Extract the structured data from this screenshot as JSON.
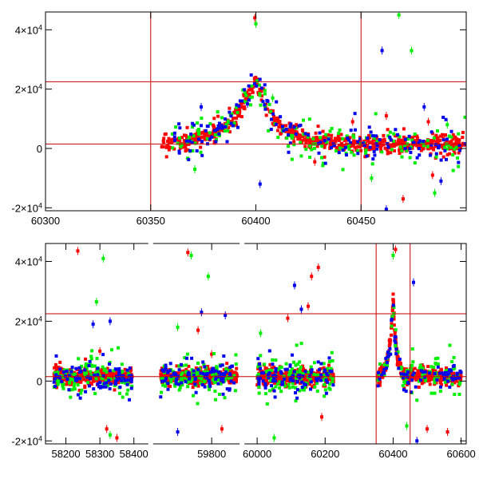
{
  "chart_data": [
    {
      "type": "scatter",
      "panel": "top",
      "xlim": [
        60300,
        60500
      ],
      "ylim": [
        -21000,
        46000
      ],
      "x_ticks": [
        60300,
        60350,
        60400,
        60450
      ],
      "y_ticks": [
        {
          "value": -20000,
          "mantissa": "-2",
          "sup": "4"
        },
        {
          "value": 0,
          "mantissa": "0",
          "sup": ""
        },
        {
          "value": 20000,
          "mantissa": "2",
          "sup": "4"
        },
        {
          "value": 40000,
          "mantissa": "4",
          "sup": "4"
        }
      ],
      "horizontal_lines": [
        1500,
        22500
      ],
      "vertical_lines": [
        60350,
        60450
      ],
      "grid": false,
      "series": [
        {
          "color": "#ff0000",
          "segments": [
            {
              "x0": 60355,
              "x1": 60500,
              "n": 700,
              "model": "flare_top",
              "scatter": 1500,
              "outliers": [
                [
                  60399.5,
                  44000
                ],
                [
                  60428,
                  -4500
                ],
                [
                  60446,
                  9000
                ],
                [
                  60462,
                  11000
                ],
                [
                  60470,
                  -17000
                ],
                [
                  60482,
                  9000
                ],
                [
                  60484,
                  -9000
                ]
              ]
            }
          ]
        },
        {
          "color": "#00ee00",
          "segments": [
            {
              "x0": 60360,
              "x1": 60500,
              "n": 180,
              "model": "flare_top",
              "scatter": 3500,
              "outliers": [
                [
                  60400,
                  42000
                ],
                [
                  60408,
                  17000
                ],
                [
                  60371,
                  -7000
                ],
                [
                  60468,
                  45000
                ],
                [
                  60474,
                  33000
                ],
                [
                  60455,
                  -10000
                ],
                [
                  60485,
                  -15000
                ],
                [
                  60491,
                  8000
                ]
              ]
            }
          ]
        },
        {
          "color": "#0000ee",
          "segments": [
            {
              "x0": 60360,
              "x1": 60500,
              "n": 160,
              "model": "flare_top",
              "scatter": 3000,
              "outliers": [
                [
                  60374,
                  14000
                ],
                [
                  60396,
                  15000
                ],
                [
                  60402,
                  -12000
                ],
                [
                  60460,
                  33000
                ],
                [
                  60462,
                  -20500
                ],
                [
                  60480,
                  14000
                ],
                [
                  60488,
                  -11000
                ]
              ]
            }
          ]
        }
      ]
    },
    {
      "type": "scatter",
      "panel": "bottom",
      "x_ticks": [
        58200,
        58300,
        58400,
        59800,
        60000,
        60200,
        60400,
        60600
      ],
      "x_segments": [
        [
          58140,
          58440
        ],
        [
          59630,
          59880
        ],
        [
          59965,
          60615
        ]
      ],
      "ylim": [
        -21000,
        46000
      ],
      "y_ticks": [
        {
          "value": -20000,
          "mantissa": "-2",
          "sup": "4"
        },
        {
          "value": 0,
          "mantissa": "0",
          "sup": ""
        },
        {
          "value": 20000,
          "mantissa": "2",
          "sup": "4"
        },
        {
          "value": 40000,
          "mantissa": "4",
          "sup": "4"
        }
      ],
      "horizontal_lines": [
        1500,
        22500
      ],
      "vertical_lines": [
        60350,
        60450
      ],
      "grid": false,
      "series": [
        {
          "color": "#ff0000",
          "segments": [
            {
              "x0": 58165,
              "x1": 58395,
              "n": 420,
              "model": "flat",
              "scatter": 1200,
              "outliers": [
                [
                  58235,
                  43500
                ],
                [
                  58300,
                  10000
                ],
                [
                  58320,
                  -16000
                ],
                [
                  58350,
                  -19000
                ]
              ]
            },
            {
              "x0": 59650,
              "x1": 59875,
              "n": 420,
              "model": "flat",
              "scatter": 1200,
              "outliers": [
                [
                  59730,
                  43000
                ],
                [
                  59760,
                  17000
                ],
                [
                  59800,
                  9000
                ],
                [
                  59830,
                  -16000
                ]
              ]
            },
            {
              "x0": 60000,
              "x1": 60225,
              "n": 420,
              "model": "flat",
              "scatter": 1200,
              "outliers": [
                [
                  60090,
                  21000
                ],
                [
                  60150,
                  25000
                ],
                [
                  60160,
                  35000
                ],
                [
                  60180,
                  38000
                ],
                [
                  60190,
                  -12000
                ]
              ]
            },
            {
              "x0": 60355,
              "x1": 60600,
              "n": 420,
              "model": "flare_bottom",
              "scatter": 1200,
              "outliers": [
                [
                  60407,
                  44000
                ],
                [
                  60500,
                  -16000
                ],
                [
                  60560,
                  -17000
                ]
              ]
            }
          ]
        },
        {
          "color": "#00ee00",
          "segments": [
            {
              "x0": 58165,
              "x1": 58395,
              "n": 120,
              "model": "flat",
              "scatter": 3000,
              "outliers": [
                [
                  58310,
                  41000
                ],
                [
                  58290,
                  26500
                ],
                [
                  58330,
                  -18000
                ]
              ]
            },
            {
              "x0": 59650,
              "x1": 59875,
              "n": 120,
              "model": "flat",
              "scatter": 3000,
              "outliers": [
                [
                  59740,
                  42000
                ],
                [
                  59790,
                  35000
                ],
                [
                  59700,
                  18000
                ]
              ]
            },
            {
              "x0": 60000,
              "x1": 60225,
              "n": 120,
              "model": "flat",
              "scatter": 3000,
              "outliers": [
                [
                  60010,
                  16000
                ],
                [
                  60050,
                  -19000
                ]
              ]
            },
            {
              "x0": 60355,
              "x1": 60600,
              "n": 90,
              "model": "flare_bottom",
              "scatter": 3000,
              "outliers": [
                [
                  60400,
                  42000
                ],
                [
                  60440,
                  -15000
                ]
              ]
            }
          ]
        },
        {
          "color": "#0000ee",
          "segments": [
            {
              "x0": 58165,
              "x1": 58395,
              "n": 90,
              "model": "flat",
              "scatter": 2500,
              "outliers": [
                [
                  58280,
                  19000
                ],
                [
                  58330,
                  20000
                ]
              ]
            },
            {
              "x0": 59650,
              "x1": 59875,
              "n": 90,
              "model": "flat",
              "scatter": 2500,
              "outliers": [
                [
                  59770,
                  23000
                ],
                [
                  59840,
                  22000
                ],
                [
                  59700,
                  -17000
                ]
              ]
            },
            {
              "x0": 60000,
              "x1": 60225,
              "n": 90,
              "model": "flat",
              "scatter": 2500,
              "outliers": [
                [
                  60110,
                  32000
                ],
                [
                  60130,
                  24000
                ]
              ]
            },
            {
              "x0": 60355,
              "x1": 60600,
              "n": 80,
              "model": "flare_bottom",
              "scatter": 2500,
              "outliers": [
                [
                  60460,
                  33000
                ],
                [
                  60470,
                  -20000
                ]
              ]
            }
          ]
        }
      ]
    }
  ]
}
